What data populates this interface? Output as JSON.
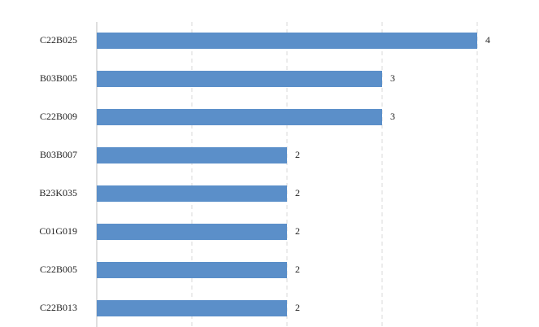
{
  "chart_data": {
    "type": "bar",
    "orientation": "horizontal",
    "categories": [
      "C22B025",
      "B03B005",
      "C22B009",
      "B03B007",
      "B23K035",
      "C01G019",
      "C22B005",
      "C22B013"
    ],
    "values": [
      4,
      3,
      3,
      2,
      2,
      2,
      2,
      2
    ],
    "xlim": [
      0,
      4
    ],
    "grid": "vertical dashed",
    "legend": "none",
    "title": "",
    "xlabel": "",
    "ylabel": "",
    "bar_color": "#5b8fc9",
    "data_labels": true
  }
}
